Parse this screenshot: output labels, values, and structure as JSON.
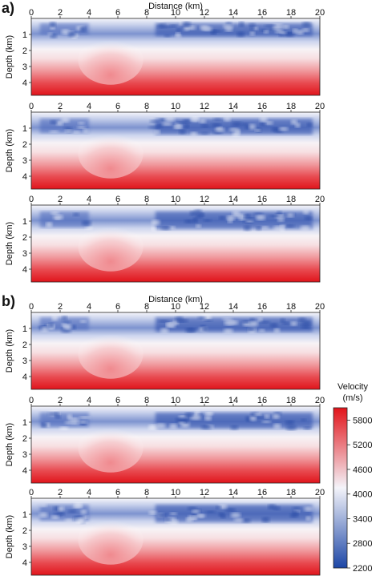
{
  "figure": {
    "part_labels": [
      "a)",
      "b)"
    ],
    "x_axis_title": "Distance (km)",
    "y_axis_title": "Depth (km)"
  },
  "colorbar": {
    "title_line1": "Velocity",
    "title_line2": "(m/s)",
    "ticks": [
      2200,
      2800,
      3400,
      4000,
      4600,
      5200,
      5800
    ],
    "range": [
      2200,
      6100
    ],
    "colors": {
      "low": "#1c46a6",
      "mid": "#f4f4fa",
      "high": "#e2141a"
    }
  },
  "chart_data": [
    {
      "type": "heatmap",
      "part": "a)",
      "variable": "velocity",
      "xlim": [
        0,
        20
      ],
      "ylim": [
        0,
        4.8
      ],
      "xticks": [
        0,
        2,
        4,
        6,
        8,
        10,
        12,
        14,
        16,
        18,
        20
      ],
      "yticks": [
        1,
        2,
        3,
        4
      ],
      "low_velocity_layer_depth_km": [
        0.3,
        1.1
      ],
      "high_velocity_dome_x_km": [
        4,
        7
      ]
    },
    {
      "type": "heatmap",
      "part": "a)",
      "variable": "velocity",
      "xlim": [
        0,
        20
      ],
      "ylim": [
        0,
        4.8
      ],
      "xticks": [
        0,
        2,
        4,
        6,
        8,
        10,
        12,
        14,
        16,
        18,
        20
      ],
      "yticks": [
        1,
        2,
        3,
        4
      ],
      "low_velocity_layer_depth_km": [
        0.4,
        1.4
      ],
      "high_velocity_dome_x_km": [
        4,
        7
      ]
    },
    {
      "type": "heatmap",
      "part": "a)",
      "variable": "velocity",
      "xlim": [
        0,
        20
      ],
      "ylim": [
        0,
        4.8
      ],
      "xticks": [
        0,
        2,
        4,
        6,
        8,
        10,
        12,
        14,
        16,
        18,
        20
      ],
      "yticks": [
        1,
        2,
        3,
        4
      ],
      "low_velocity_layer_depth_km": [
        0.4,
        1.5
      ],
      "high_velocity_dome_x_km": [
        4,
        7
      ]
    },
    {
      "type": "heatmap",
      "part": "b)",
      "variable": "velocity",
      "xlim": [
        0,
        20
      ],
      "ylim": [
        0,
        4.8
      ],
      "xticks": [
        0,
        2,
        4,
        6,
        8,
        10,
        12,
        14,
        16,
        18,
        20
      ],
      "yticks": [
        1,
        2,
        3,
        4
      ],
      "low_velocity_layer_depth_km": [
        0.3,
        1.2
      ],
      "high_velocity_dome_x_km": [
        4,
        7
      ]
    },
    {
      "type": "heatmap",
      "part": "b)",
      "variable": "velocity",
      "xlim": [
        0,
        20
      ],
      "ylim": [
        0,
        4.8
      ],
      "xticks": [
        0,
        2,
        4,
        6,
        8,
        10,
        12,
        14,
        16,
        18,
        20
      ],
      "yticks": [
        1,
        2,
        3,
        4
      ],
      "low_velocity_layer_depth_km": [
        0.4,
        1.4
      ],
      "high_velocity_dome_x_km": [
        4,
        7
      ]
    },
    {
      "type": "heatmap",
      "part": "b)",
      "variable": "velocity",
      "xlim": [
        0,
        20
      ],
      "ylim": [
        0,
        4.8
      ],
      "xticks": [
        0,
        2,
        4,
        6,
        8,
        10,
        12,
        14,
        16,
        18,
        20
      ],
      "yticks": [
        1,
        2,
        3,
        4
      ],
      "low_velocity_layer_depth_km": [
        0.4,
        1.5
      ],
      "high_velocity_dome_x_km": [
        4,
        7
      ]
    }
  ]
}
